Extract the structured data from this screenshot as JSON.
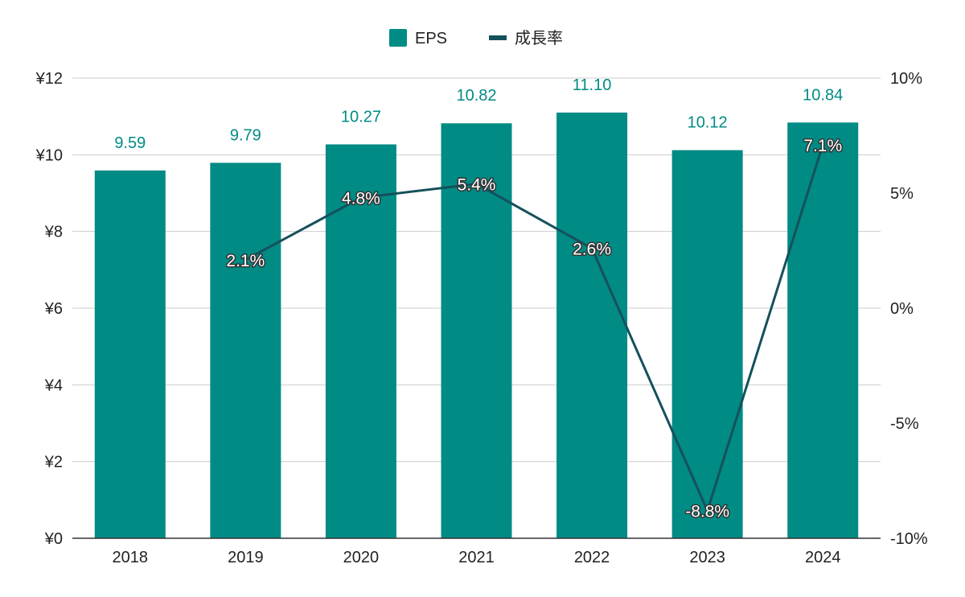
{
  "chart_data": {
    "type": "bar",
    "categories": [
      "2018",
      "2019",
      "2020",
      "2021",
      "2022",
      "2023",
      "2024"
    ],
    "series": [
      {
        "name": "EPS",
        "type": "bar",
        "axis": "left",
        "color": "#008b84",
        "values": [
          9.59,
          9.79,
          10.27,
          10.82,
          11.1,
          10.12,
          10.84
        ],
        "labels": [
          "9.59",
          "9.79",
          "10.27",
          "10.82",
          "11.10",
          "10.12",
          "10.84"
        ]
      },
      {
        "name": "成長率",
        "type": "line",
        "axis": "right",
        "color": "#16505c",
        "values": [
          null,
          2.1,
          4.8,
          5.4,
          2.6,
          -8.8,
          7.1
        ],
        "labels": [
          "",
          "2.1%",
          "4.8%",
          "5.4%",
          "2.6%",
          "-8.8%",
          "7.1%"
        ]
      }
    ],
    "left_axis": {
      "ylim": [
        0,
        12
      ],
      "ticks": [
        0,
        2,
        4,
        6,
        8,
        10,
        12
      ],
      "tick_labels": [
        "¥0",
        "¥2",
        "¥4",
        "¥6",
        "¥8",
        "¥10",
        "¥12"
      ]
    },
    "right_axis": {
      "ylim": [
        -10,
        10
      ],
      "ticks": [
        -10,
        -5,
        0,
        5,
        10
      ],
      "tick_labels": [
        "-10%",
        "-5%",
        "0%",
        "5%",
        "10%"
      ]
    },
    "grid": true,
    "legend_position": "top-center",
    "title": "",
    "xlabel": "",
    "ylabel": ""
  }
}
